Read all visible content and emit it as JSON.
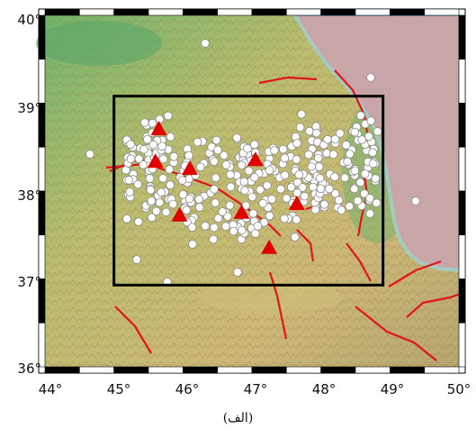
{
  "map": {
    "caption": "(الف)",
    "x_ticks": [
      "44°",
      "45°",
      "46°",
      "47°",
      "48°",
      "49°",
      "50°"
    ],
    "y_ticks": [
      "40°",
      "39°",
      "38°",
      "37°",
      "36°"
    ],
    "lon_range": [
      44,
      50
    ],
    "lat_range": [
      36,
      40
    ],
    "study_area": {
      "lon_min": 45,
      "lon_max": 48.9,
      "lat_min": 36.93,
      "lat_max": 39.08
    },
    "colors": {
      "sea": "#c8a6a8",
      "fault": "#e3141b",
      "station": "#e00000",
      "event_fill": "#ffffff",
      "event_stroke": "#8a8a8a",
      "box": "#000000"
    }
  },
  "stations": [
    {
      "lon": 45.65,
      "lat": 38.7
    },
    {
      "lon": 45.6,
      "lat": 38.33
    },
    {
      "lon": 46.1,
      "lat": 38.25
    },
    {
      "lon": 47.05,
      "lat": 38.35
    },
    {
      "lon": 45.95,
      "lat": 37.72
    },
    {
      "lon": 46.85,
      "lat": 37.75
    },
    {
      "lon": 47.65,
      "lat": 37.85
    },
    {
      "lon": 47.25,
      "lat": 37.35
    }
  ]
}
